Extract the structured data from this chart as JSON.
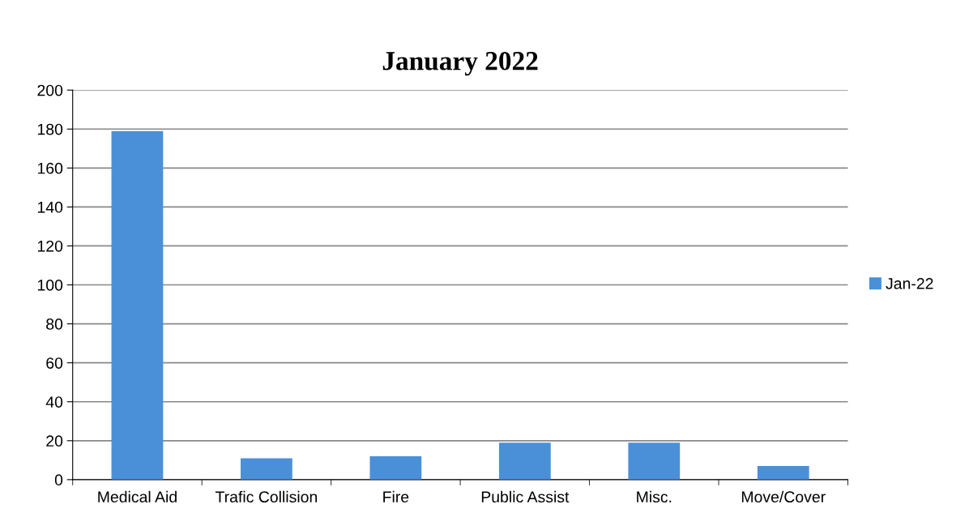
{
  "chart_data": {
    "type": "bar",
    "title": "January 2022",
    "categories": [
      "Medical Aid",
      "Trafic Collision",
      "Fire",
      "Public Assist",
      "Misc.",
      "Move/Cover"
    ],
    "series": [
      {
        "name": "Jan-22",
        "color": "#4a90d9",
        "values": [
          179,
          11,
          12,
          19,
          19,
          7
        ]
      }
    ],
    "ylim": [
      0,
      200
    ],
    "yticks": [
      0,
      20,
      40,
      60,
      80,
      100,
      120,
      140,
      160,
      180,
      200
    ],
    "grid": "y",
    "legend": "right"
  }
}
